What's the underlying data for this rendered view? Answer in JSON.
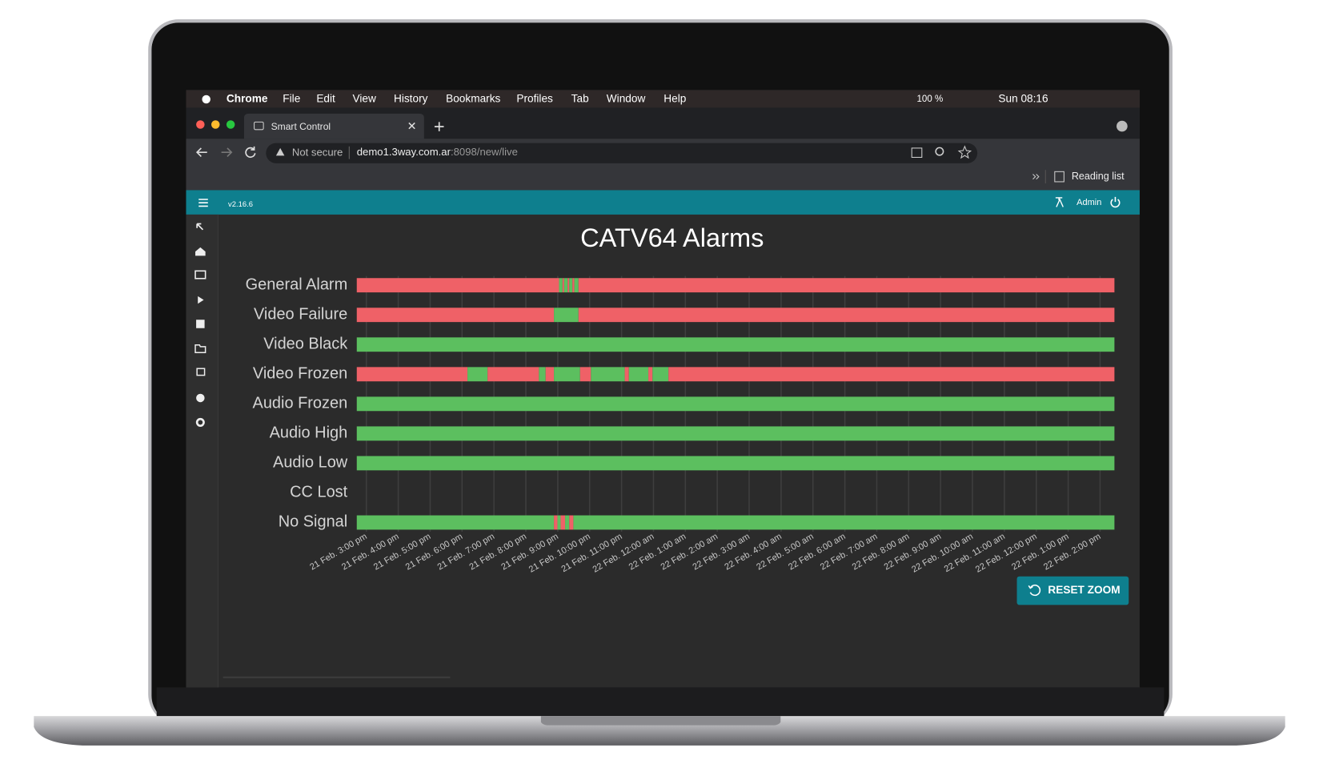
{
  "menubar": {
    "app": "Chrome",
    "menus": [
      "File",
      "Edit",
      "View",
      "History",
      "Bookmarks",
      "Profiles",
      "Tab",
      "Window",
      "Help"
    ],
    "battery": "100 %",
    "clock": "Sun 08:16"
  },
  "browser": {
    "tab_title": "Smart Control",
    "not_secure": "Not secure",
    "url_host": "demo1.3way.com.ar",
    "url_path": ":8098/new/live",
    "reading_list": "Reading list"
  },
  "app": {
    "version": "v2.16.6",
    "user": "Admin",
    "button": "RESET ZOOM"
  },
  "chart_data": {
    "type": "timeline",
    "title": "CATV64 Alarms",
    "xlim": [
      14.7,
      38.45
    ],
    "xticks": [
      {
        "value": 15,
        "label": "21 Feb. 3:00 pm"
      },
      {
        "value": 16,
        "label": "21 Feb. 4:00 pm"
      },
      {
        "value": 17,
        "label": "21 Feb. 5:00 pm"
      },
      {
        "value": 18,
        "label": "21 Feb. 6:00 pm"
      },
      {
        "value": 19,
        "label": "21 Feb. 7:00 pm"
      },
      {
        "value": 20,
        "label": "21 Feb. 8:00 pm"
      },
      {
        "value": 21,
        "label": "21 Feb. 9:00 pm"
      },
      {
        "value": 22,
        "label": "21 Feb. 10:00 pm"
      },
      {
        "value": 23,
        "label": "21 Feb. 11:00 pm"
      },
      {
        "value": 24,
        "label": "22 Feb. 12:00 am"
      },
      {
        "value": 25,
        "label": "22 Feb. 1:00 am"
      },
      {
        "value": 26,
        "label": "22 Feb. 2:00 am"
      },
      {
        "value": 27,
        "label": "22 Feb. 3:00 am"
      },
      {
        "value": 28,
        "label": "22 Feb. 4:00 am"
      },
      {
        "value": 29,
        "label": "22 Feb. 5:00 am"
      },
      {
        "value": 30,
        "label": "22 Feb. 6:00 am"
      },
      {
        "value": 31,
        "label": "22 Feb. 7:00 am"
      },
      {
        "value": 32,
        "label": "22 Feb. 8:00 am"
      },
      {
        "value": 33,
        "label": "22 Feb. 9:00 am"
      },
      {
        "value": 34,
        "label": "22 Feb. 10:00 am"
      },
      {
        "value": 35,
        "label": "22 Feb. 11:00 am"
      },
      {
        "value": 36,
        "label": "22 Feb. 12:00 pm"
      },
      {
        "value": 37,
        "label": "22 Feb. 1:00 pm"
      },
      {
        "value": 38,
        "label": "22 Feb. 2:00 pm"
      }
    ],
    "grid": true,
    "rows": [
      {
        "name": "General Alarm",
        "segments": [
          {
            "start": 14.7,
            "end": 21.04,
            "color": "#ef6167"
          },
          {
            "start": 21.04,
            "end": 21.15,
            "color": "#5cbf5f"
          },
          {
            "start": 21.15,
            "end": 21.2,
            "color": "#ef6167"
          },
          {
            "start": 21.2,
            "end": 21.31,
            "color": "#5cbf5f"
          },
          {
            "start": 21.31,
            "end": 21.36,
            "color": "#ef6167"
          },
          {
            "start": 21.36,
            "end": 21.46,
            "color": "#5cbf5f"
          },
          {
            "start": 21.46,
            "end": 21.52,
            "color": "#ef6167"
          },
          {
            "start": 21.52,
            "end": 21.65,
            "color": "#5cbf5f"
          },
          {
            "start": 21.65,
            "end": 38.45,
            "color": "#ef6167"
          }
        ]
      },
      {
        "name": "Video Failure",
        "segments": [
          {
            "start": 14.7,
            "end": 20.88,
            "color": "#ef6167"
          },
          {
            "start": 20.88,
            "end": 21.65,
            "color": "#5cbf5f"
          },
          {
            "start": 21.65,
            "end": 38.45,
            "color": "#ef6167"
          }
        ]
      },
      {
        "name": "Video Black",
        "segments": [
          {
            "start": 14.7,
            "end": 38.45,
            "color": "#5cbf5f"
          }
        ]
      },
      {
        "name": "Video Frozen",
        "segments": [
          {
            "start": 14.7,
            "end": 18.17,
            "color": "#ef6167"
          },
          {
            "start": 18.17,
            "end": 18.8,
            "color": "#5cbf5f"
          },
          {
            "start": 18.8,
            "end": 20.41,
            "color": "#ef6167"
          },
          {
            "start": 20.41,
            "end": 20.62,
            "color": "#5cbf5f"
          },
          {
            "start": 20.62,
            "end": 20.88,
            "color": "#ef6167"
          },
          {
            "start": 20.88,
            "end": 21.7,
            "color": "#5cbf5f"
          },
          {
            "start": 21.7,
            "end": 22.04,
            "color": "#ef6167"
          },
          {
            "start": 22.04,
            "end": 23.1,
            "color": "#5cbf5f"
          },
          {
            "start": 23.1,
            "end": 23.23,
            "color": "#ef6167"
          },
          {
            "start": 23.23,
            "end": 23.84,
            "color": "#5cbf5f"
          },
          {
            "start": 23.84,
            "end": 23.97,
            "color": "#ef6167"
          },
          {
            "start": 23.97,
            "end": 24.47,
            "color": "#5cbf5f"
          },
          {
            "start": 24.47,
            "end": 38.45,
            "color": "#ef6167"
          }
        ]
      },
      {
        "name": "Audio Frozen",
        "segments": [
          {
            "start": 14.7,
            "end": 38.45,
            "color": "#5cbf5f"
          }
        ]
      },
      {
        "name": "Audio High",
        "segments": [
          {
            "start": 14.7,
            "end": 38.45,
            "color": "#5cbf5f"
          }
        ]
      },
      {
        "name": "Audio Low",
        "segments": [
          {
            "start": 14.7,
            "end": 38.45,
            "color": "#5cbf5f"
          }
        ]
      },
      {
        "name": "CC Lost",
        "segments": []
      },
      {
        "name": "No Signal",
        "segments": [
          {
            "start": 14.7,
            "end": 20.88,
            "color": "#5cbf5f"
          },
          {
            "start": 20.88,
            "end": 20.99,
            "color": "#ef6167"
          },
          {
            "start": 20.99,
            "end": 21.09,
            "color": "#5cbf5f"
          },
          {
            "start": 21.09,
            "end": 21.23,
            "color": "#ef6167"
          },
          {
            "start": 21.23,
            "end": 21.36,
            "color": "#5cbf5f"
          },
          {
            "start": 21.36,
            "end": 21.49,
            "color": "#ef6167"
          },
          {
            "start": 21.49,
            "end": 38.45,
            "color": "#5cbf5f"
          }
        ]
      }
    ]
  }
}
